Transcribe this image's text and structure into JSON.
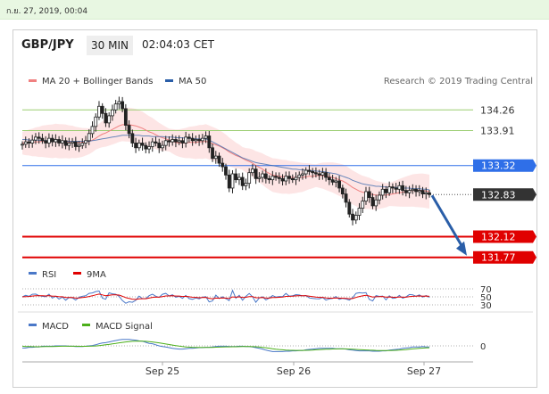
{
  "datetime": "ก.ย. 27, 2019, 00:04",
  "pair": "GBP/JPY",
  "timeframe": "30 MIN",
  "time": "02:04:03 CET",
  "chart_data": {
    "type": "candlestick",
    "legend": [
      {
        "name": "MA 20 + Bollinger Bands",
        "color": "#f08080"
      },
      {
        "name": "MA 50",
        "color": "#2a5ea8"
      }
    ],
    "credit": "Research © 2019 Trading Central",
    "ylim": [
      131.6,
      134.55
    ],
    "x_ticks": [
      "Sep 25",
      "Sep 26",
      "Sep 27"
    ],
    "levels": [
      {
        "value": 134.26,
        "label": "134.26",
        "type": "resistance",
        "color": "#9acd70"
      },
      {
        "value": 133.91,
        "label": "133.91",
        "type": "resistance",
        "color": "#9acd70"
      },
      {
        "value": 133.32,
        "label": "133.32",
        "type": "pivot",
        "color": "#2f6fe8"
      },
      {
        "value": 132.83,
        "label": "132.83",
        "type": "last",
        "color": "#333333"
      },
      {
        "value": 132.12,
        "label": "132.12",
        "type": "target",
        "color": "#e00000"
      },
      {
        "value": 131.77,
        "label": "131.77",
        "type": "target",
        "color": "#e00000"
      }
    ],
    "forecast": {
      "from": 132.83,
      "to": 131.77,
      "direction": "down",
      "color": "#2a5ea8"
    },
    "closes": [
      133.68,
      133.72,
      133.7,
      133.75,
      133.8,
      133.78,
      133.74,
      133.7,
      133.78,
      133.72,
      133.76,
      133.7,
      133.74,
      133.66,
      133.7,
      133.72,
      133.64,
      133.66,
      133.7,
      133.74,
      133.86,
      133.98,
      134.14,
      134.32,
      134.2,
      134.04,
      134.16,
      134.26,
      134.36,
      134.4,
      134.28,
      134.0,
      133.86,
      133.7,
      133.62,
      133.7,
      133.66,
      133.6,
      133.64,
      133.72,
      133.7,
      133.62,
      133.66,
      133.74,
      133.72,
      133.76,
      133.72,
      133.74,
      133.7,
      133.8,
      133.78,
      133.74,
      133.76,
      133.74,
      133.78,
      133.82,
      133.62,
      133.44,
      133.48,
      133.36,
      133.3,
      133.16,
      132.94,
      133.18,
      133.08,
      133.12,
      132.98,
      133.02,
      133.2,
      133.26,
      133.1,
      133.12,
      133.18,
      133.1,
      133.08,
      133.14,
      133.12,
      133.1,
      133.06,
      133.14,
      133.1,
      133.08,
      133.12,
      133.16,
      133.18,
      133.24,
      133.22,
      133.2,
      133.18,
      133.16,
      133.2,
      133.12,
      133.08,
      133.04,
      133.06,
      132.94,
      132.84,
      132.7,
      132.5,
      132.4,
      132.48,
      132.6,
      132.72,
      132.88,
      132.78,
      132.64,
      132.74,
      132.82,
      132.92,
      132.86,
      132.96,
      132.94,
      132.92,
      132.98,
      132.9,
      132.86,
      132.9,
      132.92,
      132.88,
      132.9,
      132.84,
      132.86,
      132.83
    ],
    "ma20": [
      133.7,
      133.7,
      133.71,
      133.71,
      133.72,
      133.72,
      133.73,
      133.73,
      133.73,
      133.73,
      133.74,
      133.73,
      133.73,
      133.73,
      133.72,
      133.72,
      133.71,
      133.71,
      133.71,
      133.72,
      133.73,
      133.75,
      133.78,
      133.82,
      133.85,
      133.87,
      133.9,
      133.93,
      133.96,
      133.99,
      134.01,
      134.01,
      134.01,
      134.0,
      133.99,
      133.97,
      133.95,
      133.92,
      133.89,
      133.87,
      133.84,
      133.81,
      133.79,
      133.77,
      133.75,
      133.73,
      133.71,
      133.7,
      133.7,
      133.7,
      133.71,
      133.71,
      133.71,
      133.72,
      133.72,
      133.73,
      133.71,
      133.69,
      133.67,
      133.65,
      133.62,
      133.59,
      133.55,
      133.52,
      133.49,
      133.47,
      133.44,
      133.41,
      133.39,
      133.36,
      133.32,
      133.29,
      133.26,
      133.22,
      133.19,
      133.16,
      133.15,
      133.14,
      133.13,
      133.13,
      133.12,
      133.12,
      133.12,
      133.12,
      133.12,
      133.13,
      133.14,
      133.14,
      133.15,
      133.15,
      133.15,
      133.14,
      133.13,
      133.12,
      133.1,
      133.08,
      133.06,
      133.03,
      132.99,
      132.95,
      132.92,
      132.89,
      132.87,
      132.86,
      132.85,
      132.83,
      132.82,
      132.82,
      132.82,
      132.82,
      132.83,
      132.84,
      132.85,
      132.86,
      132.87,
      132.88,
      132.89,
      132.9,
      132.9,
      132.9,
      132.9,
      132.89,
      132.88
    ],
    "ma50": [
      133.76,
      133.76,
      133.75,
      133.75,
      133.75,
      133.75,
      133.74,
      133.74,
      133.74,
      133.74,
      133.74,
      133.73,
      133.73,
      133.73,
      133.73,
      133.73,
      133.73,
      133.73,
      133.73,
      133.73,
      133.73,
      133.74,
      133.75,
      133.76,
      133.77,
      133.78,
      133.79,
      133.8,
      133.81,
      133.82,
      133.83,
      133.83,
      133.83,
      133.83,
      133.83,
      133.83,
      133.82,
      133.82,
      133.82,
      133.81,
      133.81,
      133.81,
      133.81,
      133.8,
      133.8,
      133.8,
      133.79,
      133.79,
      133.79,
      133.78,
      133.78,
      133.78,
      133.77,
      133.77,
      133.77,
      133.77,
      133.75,
      133.72,
      133.69,
      133.66,
      133.63,
      133.6,
      133.57,
      133.54,
      133.51,
      133.48,
      133.45,
      133.43,
      133.41,
      133.39,
      133.37,
      133.36,
      133.35,
      133.34,
      133.33,
      133.32,
      133.31,
      133.3,
      133.29,
      133.28,
      133.27,
      133.26,
      133.26,
      133.25,
      133.25,
      133.24,
      133.24,
      133.23,
      133.23,
      133.22,
      133.22,
      133.21,
      133.2,
      133.19,
      133.18,
      133.16,
      133.14,
      133.12,
      133.1,
      133.07,
      133.05,
      133.03,
      133.01,
      133.0,
      132.99,
      132.98,
      132.97,
      132.97,
      132.96,
      132.96,
      132.95,
      132.95,
      132.95,
      132.95,
      132.94,
      132.94,
      132.94,
      132.93,
      132.93,
      132.93,
      132.92,
      132.92,
      132.91
    ],
    "rsi": {
      "legend": [
        {
          "name": "RSI",
          "color": "#4a78c8"
        },
        {
          "name": "9MA",
          "color": "#e00000"
        }
      ],
      "levels": [
        "70",
        "50",
        "30"
      ]
    },
    "macd": {
      "legend": [
        {
          "name": "MACD",
          "color": "#4a78c8"
        },
        {
          "name": "MACD Signal",
          "color": "#4caf1a"
        }
      ],
      "zero_label": "0"
    }
  }
}
